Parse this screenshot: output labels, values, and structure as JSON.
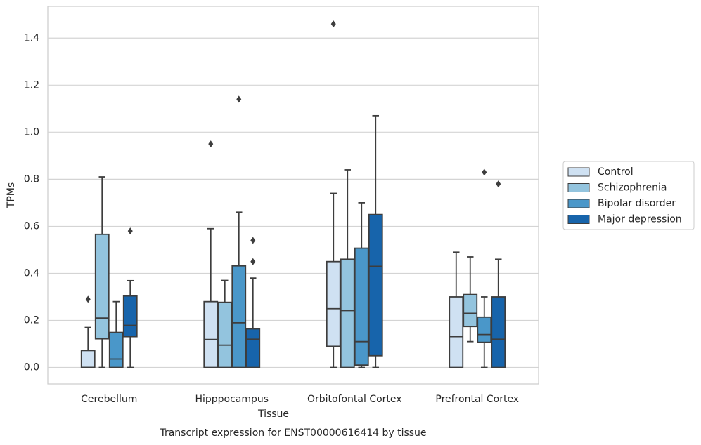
{
  "chart_data": {
    "type": "box",
    "title": "Transcript expression for ENST00000616414 by tissue",
    "xlabel": "Tissue",
    "ylabel": "TPMs",
    "categories": [
      "Cerebellum",
      "Hipppocampus",
      "Orbitofontal Cortex",
      "Prefrontal Cortex"
    ],
    "ylim": [
      -0.07,
      1.535
    ],
    "yticks": [
      {
        "value": 0,
        "label": "0.0"
      },
      0.2,
      0.4,
      0.6,
      0.8,
      {
        "value": 1,
        "label": "1.0"
      },
      1.2,
      1.4
    ],
    "grid": true,
    "legend": "right",
    "series": [
      {
        "name": "Control",
        "color": "#cfe1f2",
        "boxes": [
          {
            "whislo": 0,
            "q1": 0,
            "med": 0,
            "q3": 0.072,
            "whishi": 0.17,
            "fliers": [
              0.29
            ]
          },
          {
            "whislo": 0,
            "q1": 0,
            "med": 0.119,
            "q3": 0.28,
            "whishi": 0.59,
            "fliers": [
              0.95
            ]
          },
          {
            "whislo": 0,
            "q1": 0.09,
            "med": 0.25,
            "q3": 0.45,
            "whishi": 0.74,
            "fliers": [
              1.46
            ]
          },
          {
            "whislo": 0,
            "q1": 0,
            "med": 0.131,
            "q3": 0.3,
            "whishi": 0.49
          }
        ]
      },
      {
        "name": "Schizophrenia",
        "color": "#93c4de",
        "boxes": [
          {
            "whislo": 0,
            "q1": 0.122,
            "med": 0.21,
            "q3": 0.566,
            "whishi": 0.81
          },
          {
            "whislo": 0,
            "q1": 0,
            "med": 0.095,
            "q3": 0.277,
            "whishi": 0.37
          },
          {
            "whislo": 0,
            "q1": 0,
            "med": 0.242,
            "q3": 0.46,
            "whishi": 0.84
          },
          {
            "whislo": 0.11,
            "q1": 0.174,
            "med": 0.23,
            "q3": 0.31,
            "whishi": 0.47
          }
        ]
      },
      {
        "name": "Bipolar disorder",
        "color": "#4a97c9",
        "boxes": [
          {
            "whislo": 0,
            "q1": 0,
            "med": 0.036,
            "q3": 0.149,
            "whishi": 0.28
          },
          {
            "whislo": 0,
            "q1": 0,
            "med": 0.19,
            "q3": 0.432,
            "whishi": 0.66,
            "fliers": [
              1.14
            ]
          },
          {
            "whislo": 0,
            "q1": 0.01,
            "med": 0.11,
            "q3": 0.507,
            "whishi": 0.7
          },
          {
            "whislo": 0,
            "q1": 0.107,
            "med": 0.14,
            "q3": 0.214,
            "whishi": 0.3,
            "fliers": [
              0.83
            ]
          }
        ]
      },
      {
        "name": "Major depression",
        "color": "#1764ab",
        "boxes": [
          {
            "whislo": 0,
            "q1": 0.131,
            "med": 0.179,
            "q3": 0.304,
            "whishi": 0.369,
            "fliers": [
              0.58
            ]
          },
          {
            "whislo": 0,
            "q1": 0,
            "med": 0.12,
            "q3": 0.164,
            "whishi": 0.38,
            "fliers": [
              0.45,
              0.54
            ]
          },
          {
            "whislo": 0,
            "q1": 0.05,
            "med": 0.43,
            "q3": 0.65,
            "whishi": 1.07
          },
          {
            "whislo": 0,
            "q1": 0,
            "med": 0.12,
            "q3": 0.3,
            "whishi": 0.46,
            "fliers": [
              0.78
            ]
          }
        ]
      }
    ]
  }
}
